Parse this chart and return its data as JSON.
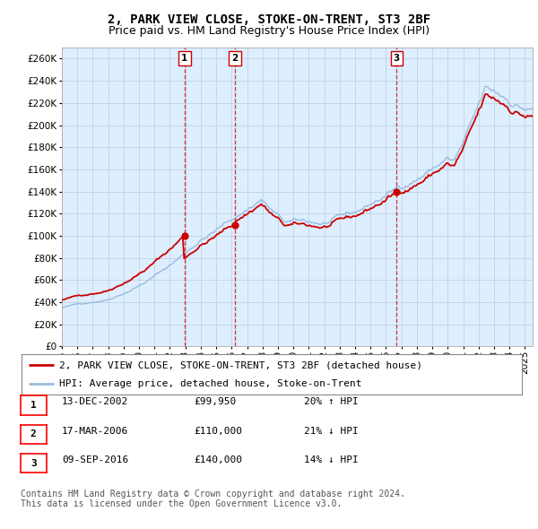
{
  "title": "2, PARK VIEW CLOSE, STOKE-ON-TRENT, ST3 2BF",
  "subtitle": "Price paid vs. HM Land Registry's House Price Index (HPI)",
  "ylim": [
    0,
    270000
  ],
  "yticks": [
    0,
    20000,
    40000,
    60000,
    80000,
    100000,
    120000,
    140000,
    160000,
    180000,
    200000,
    220000,
    240000,
    260000
  ],
  "sale_color": "#cc0000",
  "hpi_color": "#99bbdd",
  "vline_color": "#cc0000",
  "background_color": "#ffffff",
  "chart_bg_color": "#ddeeff",
  "grid_color": "#bbccdd",
  "legend_label_sale": "2, PARK VIEW CLOSE, STOKE-ON-TRENT, ST3 2BF (detached house)",
  "legend_label_hpi": "HPI: Average price, detached house, Stoke-on-Trent",
  "sales": [
    {
      "date": 2002.95,
      "price": 99950,
      "label": "1"
    },
    {
      "date": 2006.21,
      "price": 110000,
      "label": "2"
    },
    {
      "date": 2016.69,
      "price": 140000,
      "label": "3"
    }
  ],
  "table_rows": [
    [
      "1",
      "13-DEC-2002",
      "£99,950",
      "20% ↑ HPI"
    ],
    [
      "2",
      "17-MAR-2006",
      "£110,000",
      "21% ↓ HPI"
    ],
    [
      "3",
      "09-SEP-2016",
      "£140,000",
      "14% ↓ HPI"
    ]
  ],
  "footer": "Contains HM Land Registry data © Crown copyright and database right 2024.\nThis data is licensed under the Open Government Licence v3.0.",
  "title_fontsize": 10,
  "subtitle_fontsize": 9,
  "axis_fontsize": 7.5,
  "legend_fontsize": 8,
  "table_fontsize": 8,
  "footer_fontsize": 7
}
